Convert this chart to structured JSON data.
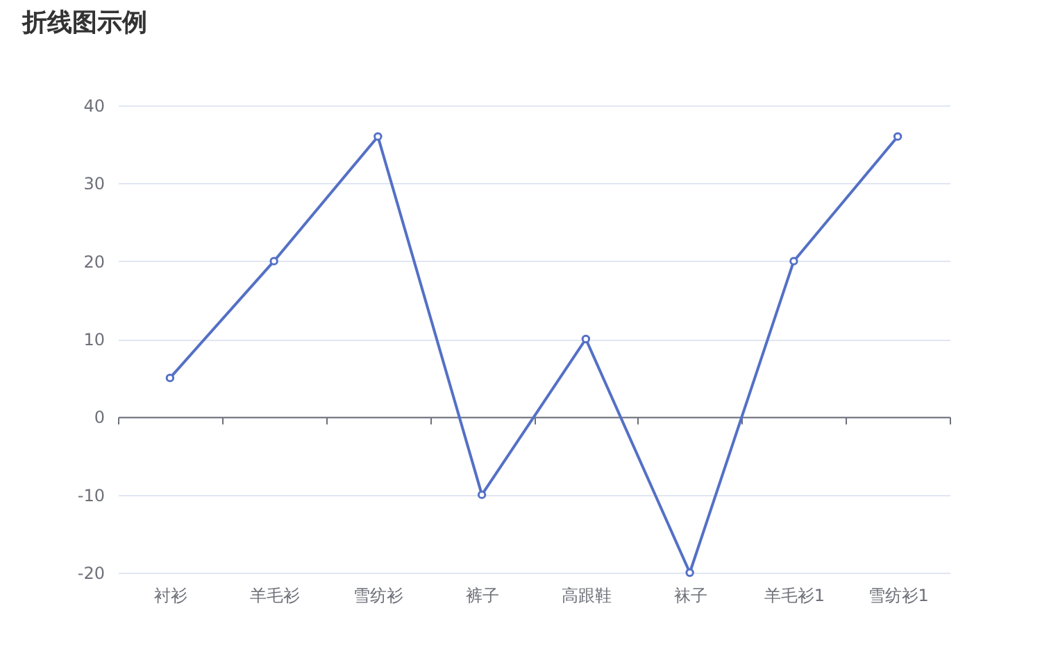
{
  "chart_data": {
    "type": "line",
    "title": "折线图示例",
    "categories": [
      "衬衫",
      "羊毛衫",
      "雪纺衫",
      "裤子",
      "高跟鞋",
      "袜子",
      "羊毛衫1",
      "雪纺衫1"
    ],
    "series": [
      {
        "color": "#5470c6",
        "values": [
          5,
          20,
          36,
          -10,
          10,
          -20,
          20,
          36
        ]
      }
    ],
    "ylim": [
      -20,
      40
    ],
    "yticks": [
      -20,
      -10,
      0,
      10,
      20,
      30,
      40
    ],
    "grid": "y",
    "marker": "circle",
    "line_style": "solid"
  }
}
